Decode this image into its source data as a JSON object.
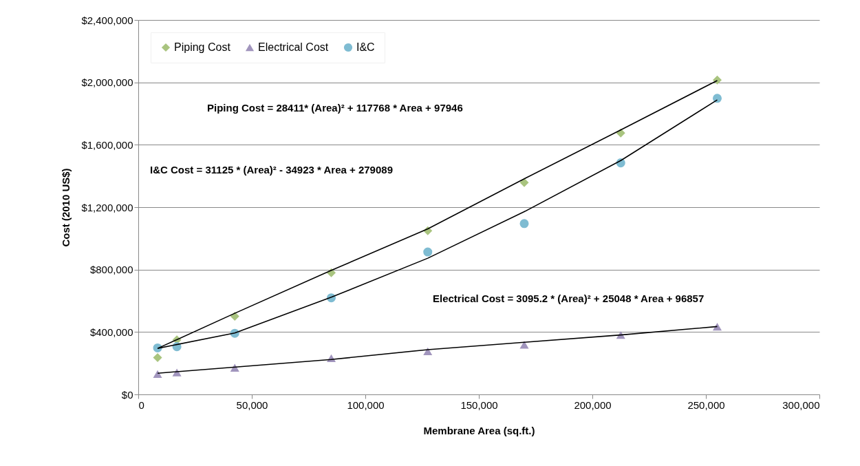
{
  "chart_data": {
    "type": "scatter",
    "xlabel": "Membrane Area (sq.ft.)",
    "ylabel": "Cost (2010 US$)",
    "xlim": [
      0,
      300000
    ],
    "ylim": [
      0,
      2400000
    ],
    "xticks": [
      {
        "value": 0,
        "label": "0"
      },
      {
        "value": 50000,
        "label": "50,000"
      },
      {
        "value": 100000,
        "label": "100,000"
      },
      {
        "value": 150000,
        "label": "150,000"
      },
      {
        "value": 200000,
        "label": "200,000"
      },
      {
        "value": 250000,
        "label": "250,000"
      },
      {
        "value": 300000,
        "label": "300,000"
      }
    ],
    "yticks": [
      {
        "value": 0,
        "label": "$0"
      },
      {
        "value": 400000,
        "label": "$400,000"
      },
      {
        "value": 800000,
        "label": "$800,000"
      },
      {
        "value": 1200000,
        "label": "$1,200,000"
      },
      {
        "value": 1600000,
        "label": "$1,600,000"
      },
      {
        "value": 2000000,
        "label": "$2,000,000"
      },
      {
        "value": 2400000,
        "label": "$2,400,000"
      }
    ],
    "grid": "y",
    "legend": "top left",
    "annotations": [
      "Piping Cost = 28411* (Area)² + 117768 * Area + 97946",
      "I&C Cost = 31125 * (Area)² - 34923 * Area + 279089",
      "Electrical Cost = 3095.2 * (Area)² + 25048 * Area + 96857"
    ],
    "series": [
      {
        "name": "Piping Cost",
        "color": "#a9c47f",
        "marker": "diamond",
        "x": [
          8500,
          17000,
          42500,
          85000,
          127500,
          170000,
          212500,
          255000
        ],
        "values": [
          236000,
          350000,
          501000,
          780000,
          1049000,
          1358000,
          1675000,
          2015000
        ]
      },
      {
        "name": "Electrical Cost",
        "color": "#a195bd",
        "marker": "triangle",
        "x": [
          8500,
          17000,
          42500,
          85000,
          127500,
          170000,
          212500,
          255000
        ],
        "values": [
          131000,
          141000,
          171000,
          232000,
          276000,
          318000,
          381000,
          434000
        ]
      },
      {
        "name": "I&C",
        "color": "#7fbcd2",
        "marker": "circle",
        "x": [
          8500,
          17000,
          42500,
          85000,
          127500,
          170000,
          212500,
          255000
        ],
        "values": [
          298000,
          306000,
          392000,
          619000,
          913000,
          1095000,
          1484000,
          1898000
        ]
      },
      {
        "type": "line",
        "color": "#000000",
        "line_style": "solid",
        "x": [
          8500,
          42500,
          85000,
          127500,
          170000,
          212500,
          255000
        ],
        "values": [
          295000,
          520000,
          795000,
          1061000,
          1382000,
          1695000,
          2012000
        ]
      },
      {
        "type": "line",
        "color": "#000000",
        "line_style": "solid",
        "x": [
          8500,
          42500,
          85000,
          127500,
          170000,
          212500,
          255000
        ],
        "values": [
          295000,
          394000,
          623000,
          873000,
          1171000,
          1499000,
          1888000
        ]
      },
      {
        "type": "line",
        "color": "#000000",
        "line_style": "solid",
        "x": [
          8500,
          85000,
          127500,
          170000,
          212500,
          255000
        ],
        "values": [
          136000,
          224000,
          287000,
          334000,
          381000,
          435000
        ]
      }
    ]
  }
}
